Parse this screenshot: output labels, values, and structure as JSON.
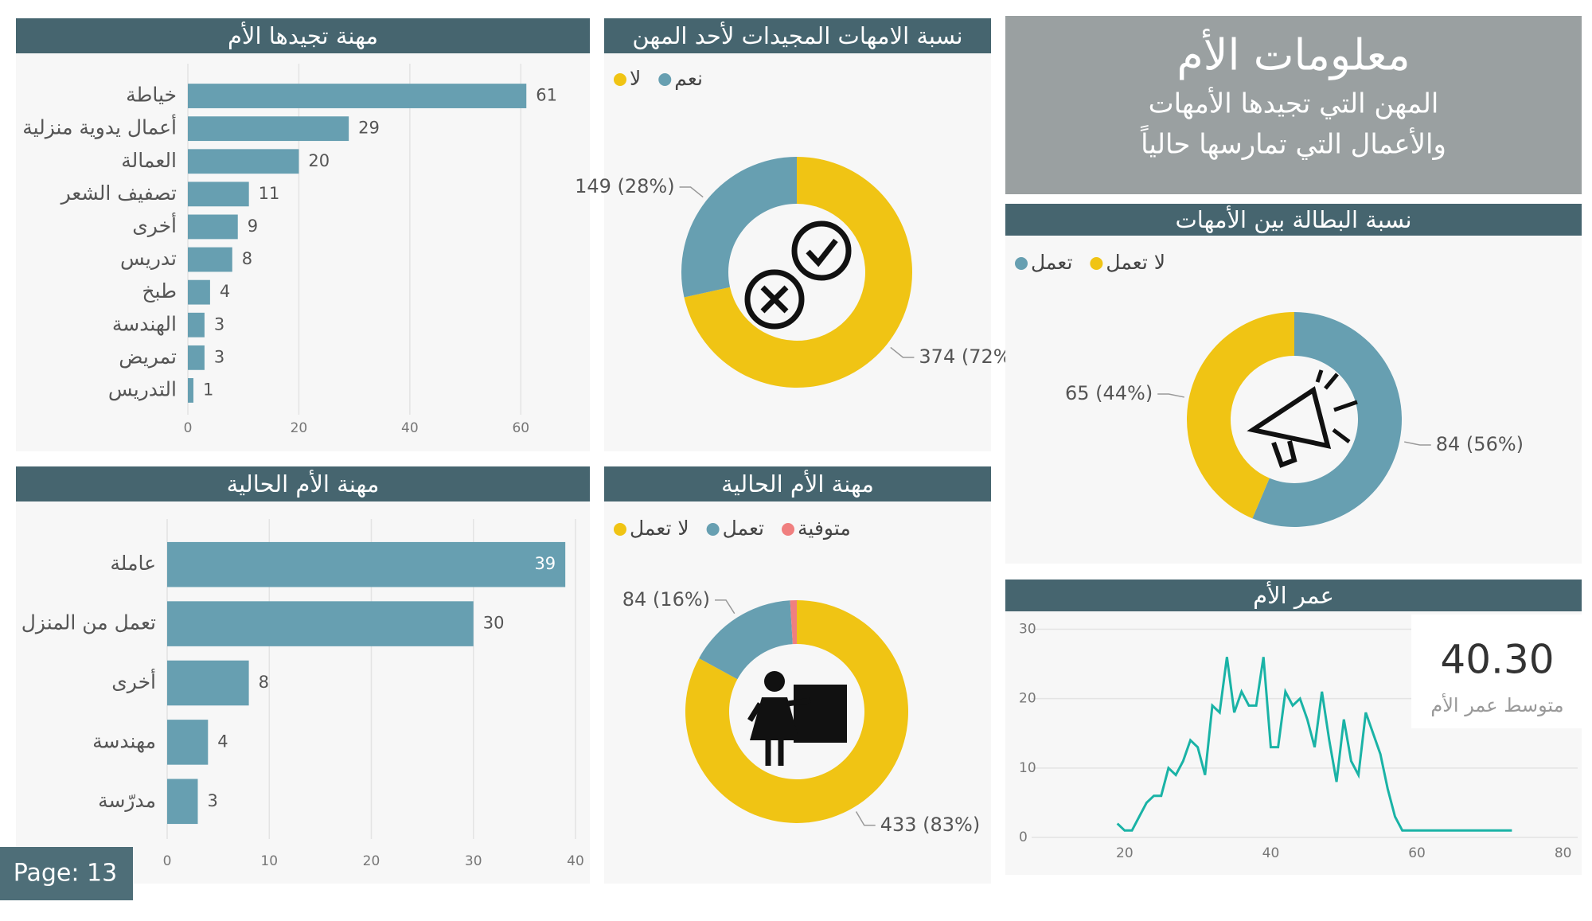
{
  "header": {
    "title": "معلومات الأم",
    "subtitle": [
      "المهن التي تجيدها الأمهات",
      "والأعمال التي تمارسها حالياً"
    ]
  },
  "page_label": "Page: 13",
  "kpi": {
    "value": "40.30",
    "label": "متوسط عمر الأم"
  },
  "chart_data": [
    {
      "type": "bar",
      "orientation": "horizontal",
      "title": "مهنة تجيدها الأم",
      "categories": [
        "خياطة",
        "أعمال يدوية منزلية",
        "العمالة",
        "تصفيف الشعر",
        "أخرى",
        "تدريس",
        "طبخ",
        "الهندسة",
        "تمريض",
        "التدريس"
      ],
      "values": [
        61,
        29,
        20,
        11,
        9,
        8,
        4,
        3,
        3,
        1
      ],
      "color": "#679fb1",
      "xlim": [
        0,
        70
      ],
      "xticks": [
        0,
        20,
        40,
        60
      ],
      "grid": true
    },
    {
      "type": "donut",
      "title": "نسبة الامهات المجيدات لأحد المهن",
      "categories": [
        "لا",
        "نعم"
      ],
      "values": [
        374,
        149
      ],
      "value_labels": [
        "374 (72%)",
        "149 (28%)"
      ],
      "colors": [
        "#f0c414",
        "#679fb1"
      ]
    },
    {
      "type": "bar",
      "orientation": "horizontal",
      "title": "مهنة الأم الحالية",
      "categories": [
        "عاملة",
        "تعمل من المنزل",
        "أخرى",
        "مهندسة",
        "مدرّسة"
      ],
      "values": [
        39,
        30,
        8,
        4,
        3
      ],
      "color": "#679fb1",
      "xlim": [
        0,
        40
      ],
      "xticks": [
        0,
        10,
        20,
        30,
        40
      ],
      "grid": true
    },
    {
      "type": "donut",
      "title": "مهنة الأم الحالية",
      "categories": [
        "لا تعمل",
        "تعمل",
        "متوفية"
      ],
      "values": [
        433,
        84,
        5
      ],
      "value_labels": [
        "433 (83%)",
        "84 (16%)",
        null
      ],
      "colors": [
        "#f0c414",
        "#679fb1",
        "#f07f7f"
      ]
    },
    {
      "type": "donut",
      "title": "نسبة البطالة بين الأمهات",
      "categories": [
        "تعمل",
        "لا تعمل"
      ],
      "values": [
        84,
        65
      ],
      "value_labels": [
        "84 (56%)",
        "65 (44%)"
      ],
      "colors": [
        "#679fb1",
        "#f0c414"
      ]
    },
    {
      "type": "line",
      "title": "عمر الأم",
      "x": [
        19,
        20,
        21,
        22,
        23,
        24,
        25,
        26,
        27,
        28,
        29,
        30,
        31,
        32,
        33,
        34,
        35,
        36,
        37,
        38,
        39,
        40,
        41,
        42,
        43,
        44,
        45,
        46,
        47,
        48,
        49,
        50,
        51,
        52,
        53,
        54,
        55,
        56,
        57,
        58,
        59,
        60,
        61,
        62,
        63,
        64,
        65,
        66,
        67,
        68,
        69,
        70,
        71,
        72,
        73
      ],
      "values": [
        2,
        1,
        1,
        3,
        5,
        6,
        6,
        10,
        9,
        11,
        14,
        13,
        9,
        19,
        18,
        26,
        18,
        21,
        19,
        19,
        26,
        13,
        13,
        21,
        19,
        20,
        17,
        13,
        21,
        14,
        8,
        17,
        11,
        9,
        18,
        15,
        12,
        7,
        3,
        1,
        1,
        1,
        1,
        1,
        1,
        1,
        1,
        1,
        1,
        1,
        1,
        1,
        1,
        1,
        1
      ],
      "color": "#1ab3a6",
      "xlim": [
        4,
        82
      ],
      "xticks": [
        20,
        40,
        60,
        80
      ],
      "ylim": [
        0,
        32
      ],
      "yticks": [
        0,
        10,
        20,
        30
      ],
      "grid": true
    }
  ]
}
